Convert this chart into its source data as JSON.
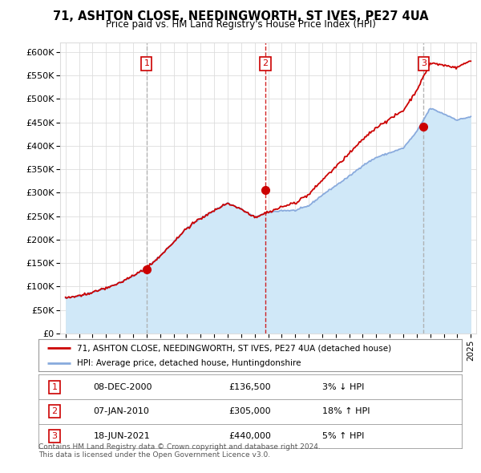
{
  "title": "71, ASHTON CLOSE, NEEDINGWORTH, ST IVES, PE27 4UA",
  "subtitle": "Price paid vs. HM Land Registry's House Price Index (HPI)",
  "ylim": [
    0,
    620000
  ],
  "yticks": [
    0,
    50000,
    100000,
    150000,
    200000,
    250000,
    300000,
    350000,
    400000,
    450000,
    500000,
    550000,
    600000
  ],
  "xlim_start": 1994.6,
  "xlim_end": 2025.4,
  "transactions": [
    {
      "num": 1,
      "date": "08-DEC-2000",
      "price": 136500,
      "year": 2001.0,
      "pct": "3%",
      "dir": "↓",
      "vline_style": "dashed_gray"
    },
    {
      "num": 2,
      "date": "07-JAN-2010",
      "price": 305000,
      "year": 2009.8,
      "pct": "18%",
      "dir": "↑",
      "vline_style": "dashed_red"
    },
    {
      "num": 3,
      "date": "18-JUN-2021",
      "price": 440000,
      "year": 2021.5,
      "pct": "5%",
      "dir": "↑",
      "vline_style": "dashed_gray"
    }
  ],
  "legend_line1": "71, ASHTON CLOSE, NEEDINGWORTH, ST IVES, PE27 4UA (detached house)",
  "legend_line2": "HPI: Average price, detached house, Huntingdonshire",
  "footer1": "Contains HM Land Registry data © Crown copyright and database right 2024.",
  "footer2": "This data is licensed under the Open Government Licence v3.0.",
  "price_line_color": "#cc0000",
  "hpi_line_color": "#88aadd",
  "hpi_fill_color": "#d0e8f8",
  "vline_red_color": "#cc0000",
  "vline_gray_color": "#aaaaaa",
  "marker_color": "#cc0000",
  "grid_color": "#dddddd",
  "background_color": "#ffffff",
  "num_label_color": "#cc0000"
}
